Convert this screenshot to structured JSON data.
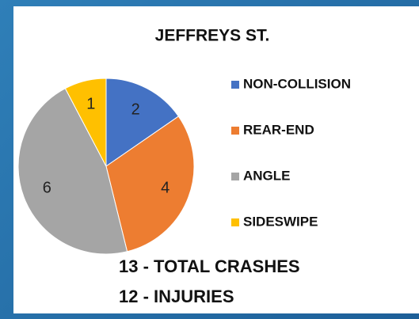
{
  "chart_data": {
    "type": "pie",
    "title": "JEFFREYS ST.",
    "categories": [
      "NON-COLLISION",
      "REAR-END",
      "ANGLE",
      "SIDESWIPE"
    ],
    "values": [
      2,
      4,
      6,
      1
    ],
    "colors": [
      "#4472c4",
      "#ed7d31",
      "#a5a5a5",
      "#ffc000"
    ],
    "annotations": [
      "13 - TOTAL CRASHES",
      "12 - INJURIES"
    ]
  }
}
